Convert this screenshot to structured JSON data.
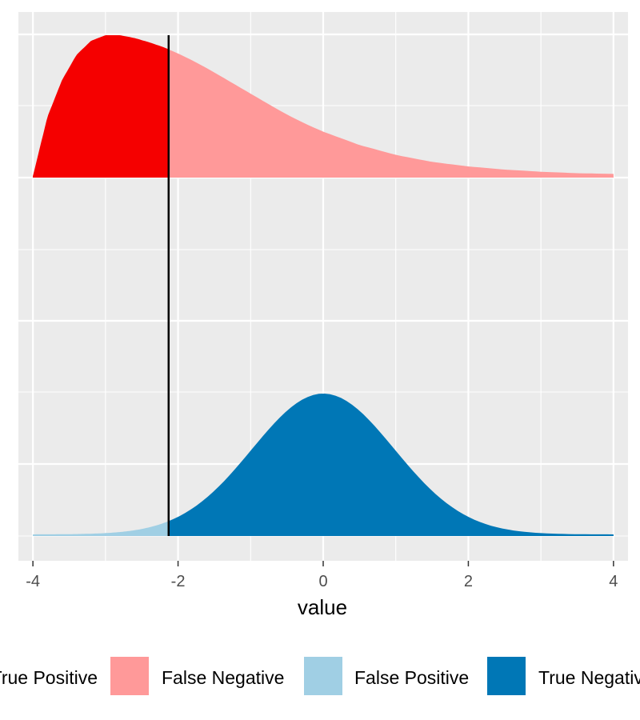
{
  "chart_data": {
    "type": "area",
    "title": "",
    "xlabel": "value",
    "ylabel": "",
    "xlim": [
      -4.2,
      4.2
    ],
    "x_ticks": [
      "-4",
      "-2",
      "0",
      "2",
      "4"
    ],
    "grid": true,
    "legend_position": "bottom",
    "threshold_x": -2.13,
    "colors": {
      "panel": "#ebebeb",
      "grid": "#ffffff",
      "true_positive": "#f50000",
      "false_negative": "#ff9999",
      "false_positive": "#a0cfe4",
      "true_negative": "#0077b6",
      "threshold_line": "#000000"
    },
    "legend": [
      {
        "label": "True Positive",
        "color": "#f50000"
      },
      {
        "label": "False Negative",
        "color": "#ff9999"
      },
      {
        "label": "False Positive",
        "color": "#a0cfe4"
      },
      {
        "label": "True Negative",
        "color": "#0077b6"
      }
    ],
    "series": [
      {
        "group": "positive",
        "ridge": 1,
        "x": [
          -4.0,
          -3.8,
          -3.6,
          -3.4,
          -3.2,
          -3.0,
          -2.8,
          -2.6,
          -2.4,
          -2.2,
          -2.0,
          -1.8,
          -1.6,
          -1.4,
          -1.2,
          -1.0,
          -0.8,
          -0.6,
          -0.4,
          -0.2,
          0.0,
          0.5,
          1.0,
          1.5,
          2.0,
          2.5,
          3.0,
          3.5,
          4.0
        ],
        "density": [
          0.0,
          0.42,
          0.68,
          0.86,
          0.96,
          1.0,
          1.0,
          0.98,
          0.95,
          0.915,
          0.87,
          0.82,
          0.765,
          0.705,
          0.645,
          0.585,
          0.525,
          0.465,
          0.41,
          0.36,
          0.315,
          0.22,
          0.15,
          0.1,
          0.068,
          0.046,
          0.03,
          0.02,
          0.015
        ],
        "below_threshold_label": "True Positive",
        "above_threshold_label": "False Negative"
      },
      {
        "group": "negative",
        "ridge": 0,
        "distribution": "normal",
        "mean": 0,
        "sd": 0.98,
        "range": [
          -4,
          4
        ],
        "below_threshold_label": "False Positive",
        "above_threshold_label": "True Negative"
      }
    ]
  }
}
